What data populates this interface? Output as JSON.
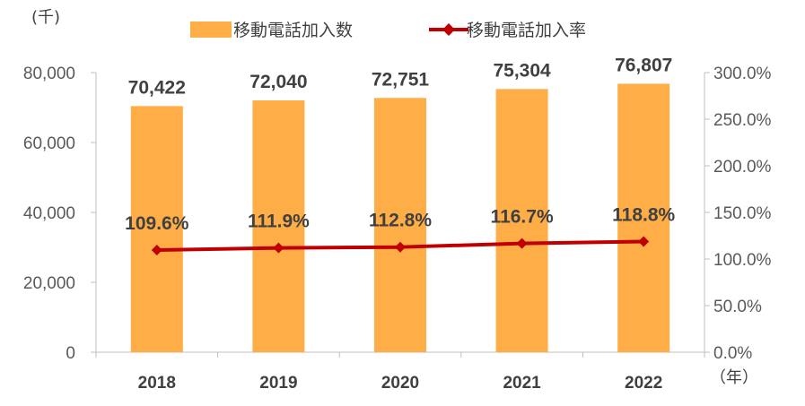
{
  "chart_data": {
    "type": "bar",
    "categories": [
      "2018",
      "2019",
      "2020",
      "2021",
      "2022"
    ],
    "series": [
      {
        "name": "移動電話加入数",
        "type": "bar",
        "axis": "left",
        "values": [
          70422,
          72040,
          72751,
          75304,
          76807
        ],
        "labels": [
          "70,422",
          "72,040",
          "72,751",
          "75,304",
          "76,807"
        ]
      },
      {
        "name": "移動電話加入率",
        "type": "line",
        "axis": "right",
        "values": [
          109.6,
          111.9,
          112.8,
          116.7,
          118.8
        ],
        "labels": [
          "109.6%",
          "111.9%",
          "112.8%",
          "116.7%",
          "118.8%"
        ]
      }
    ],
    "y_left": {
      "unit": "(千)",
      "ylim": [
        0,
        80000
      ],
      "ticks": [
        0,
        20000,
        40000,
        60000,
        80000
      ],
      "tick_labels": [
        "0",
        "20,000",
        "40,000",
        "60,000",
        "80,000"
      ]
    },
    "y_right": {
      "ylim": [
        0,
        300
      ],
      "ticks": [
        0,
        50,
        100,
        150,
        200,
        250,
        300
      ],
      "tick_labels": [
        "0.0%",
        "50.0%",
        "100.0%",
        "150.0%",
        "200.0%",
        "250.0%",
        "300.0%"
      ]
    },
    "x_unit": "（年）",
    "grid": false,
    "legend_position": "top",
    "colors": {
      "bar": "#FFAD47",
      "line": "#C00000",
      "axis": "#BFBFBF",
      "text": "#404040"
    }
  }
}
